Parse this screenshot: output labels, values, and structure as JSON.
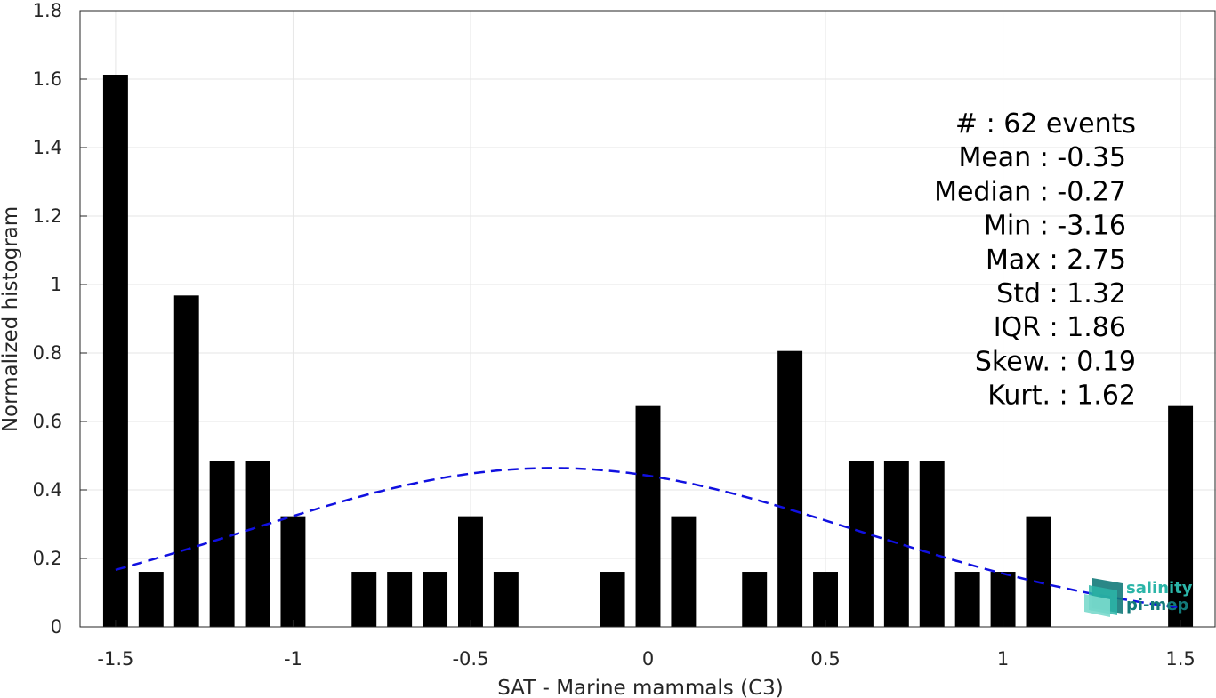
{
  "chart_data": {
    "type": "bar",
    "xlabel": "SAT - Marine mammals (C3)",
    "ylabel": "Normalized histogram",
    "xlim": [
      -1.6,
      1.6
    ],
    "ylim": [
      0,
      1.8
    ],
    "xticks": [
      -1.5,
      -1,
      -0.5,
      0,
      0.5,
      1,
      1.5
    ],
    "xtick_labels": [
      "-1.5",
      "-1",
      "-0.5",
      "0",
      "0.5",
      "1",
      "1.5"
    ],
    "yticks": [
      0,
      0.2,
      0.4,
      0.6,
      0.8,
      1,
      1.2,
      1.4,
      1.6,
      1.8
    ],
    "ytick_labels": [
      "0",
      "0.2",
      "0.4",
      "0.6",
      "0.8",
      "1",
      "1.2",
      "1.4",
      "1.6",
      "1.8"
    ],
    "grid": true,
    "bar_color": "#000000",
    "bar_width": 0.07,
    "bars": [
      {
        "x": -1.5,
        "y": 1.613
      },
      {
        "x": -1.4,
        "y": 0.161
      },
      {
        "x": -1.3,
        "y": 0.968
      },
      {
        "x": -1.2,
        "y": 0.484
      },
      {
        "x": -1.1,
        "y": 0.484
      },
      {
        "x": -1.0,
        "y": 0.323
      },
      {
        "x": -0.8,
        "y": 0.161
      },
      {
        "x": -0.7,
        "y": 0.161
      },
      {
        "x": -0.6,
        "y": 0.161
      },
      {
        "x": -0.5,
        "y": 0.323
      },
      {
        "x": -0.4,
        "y": 0.161
      },
      {
        "x": -0.1,
        "y": 0.161
      },
      {
        "x": 0.0,
        "y": 0.645
      },
      {
        "x": 0.1,
        "y": 0.323
      },
      {
        "x": 0.3,
        "y": 0.161
      },
      {
        "x": 0.4,
        "y": 0.806
      },
      {
        "x": 0.5,
        "y": 0.161
      },
      {
        "x": 0.6,
        "y": 0.484
      },
      {
        "x": 0.7,
        "y": 0.484
      },
      {
        "x": 0.8,
        "y": 0.484
      },
      {
        "x": 0.9,
        "y": 0.161
      },
      {
        "x": 1.0,
        "y": 0.161
      },
      {
        "x": 1.1,
        "y": 0.323
      },
      {
        "x": 1.5,
        "y": 0.645
      }
    ],
    "fit_curve": {
      "style": "dashed",
      "color": "#1010e0",
      "mean": -0.27,
      "std": 0.86,
      "x_range": [
        -1.5,
        1.5
      ]
    },
    "stats": [
      "#  : 62 events",
      "Mean : -0.35",
      "Median : -0.27",
      "Min : -3.16",
      "Max : 2.75",
      "Std : 1.32",
      "IQR : 1.86",
      "Skew. : 0.19",
      "Kurt. : 1.62"
    ]
  },
  "logo": {
    "line1": "salinity",
    "line2": "pi-mep",
    "color1": "#2bb5a8",
    "color2": "#137a7a"
  }
}
